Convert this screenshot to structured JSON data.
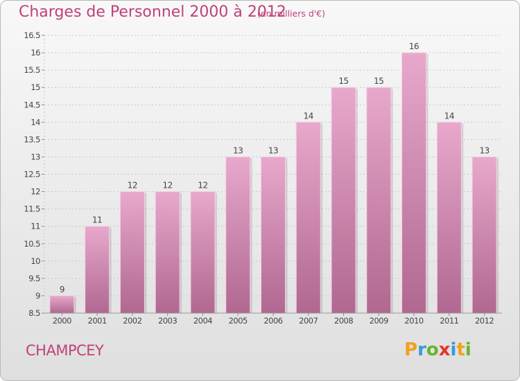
{
  "header": {
    "title": "Charges de Personnel 2000 à 2012",
    "subtitle": "(en milliers d'€)"
  },
  "commune": "CHAMPCEY",
  "logo": {
    "letters": [
      "P",
      "r",
      "o",
      "x",
      "i",
      "t",
      "i"
    ],
    "colors": [
      "#f0a020",
      "#3a9ad9",
      "#6ab42e",
      "#e2372a",
      "#3a9ad9",
      "#f0a020",
      "#6ab42e"
    ]
  },
  "chart_data": {
    "type": "bar",
    "categories": [
      "2000",
      "2001",
      "2002",
      "2003",
      "2004",
      "2005",
      "2006",
      "2007",
      "2008",
      "2009",
      "2010",
      "2011",
      "2012"
    ],
    "values": [
      9,
      11,
      12,
      12,
      12,
      13,
      13,
      14,
      15,
      15,
      16,
      14,
      13
    ],
    "value_labels": [
      "9",
      "11",
      "12",
      "12",
      "12",
      "13",
      "13",
      "14",
      "15",
      "15",
      "16",
      "14",
      "13"
    ],
    "ylim": [
      8.5,
      16.5
    ],
    "yticks": [
      "8.5",
      "9",
      "9.5",
      "10",
      "10.5",
      "11",
      "11.5",
      "12",
      "12.5",
      "13",
      "13.5",
      "14",
      "14.5",
      "15",
      "15.5",
      "16",
      "16.5"
    ],
    "grid": true,
    "colors": {
      "bar_light": "#e8a8cc",
      "bar_dark": "#b06890",
      "text": "#444444",
      "grid": "#c8c8c8"
    }
  }
}
